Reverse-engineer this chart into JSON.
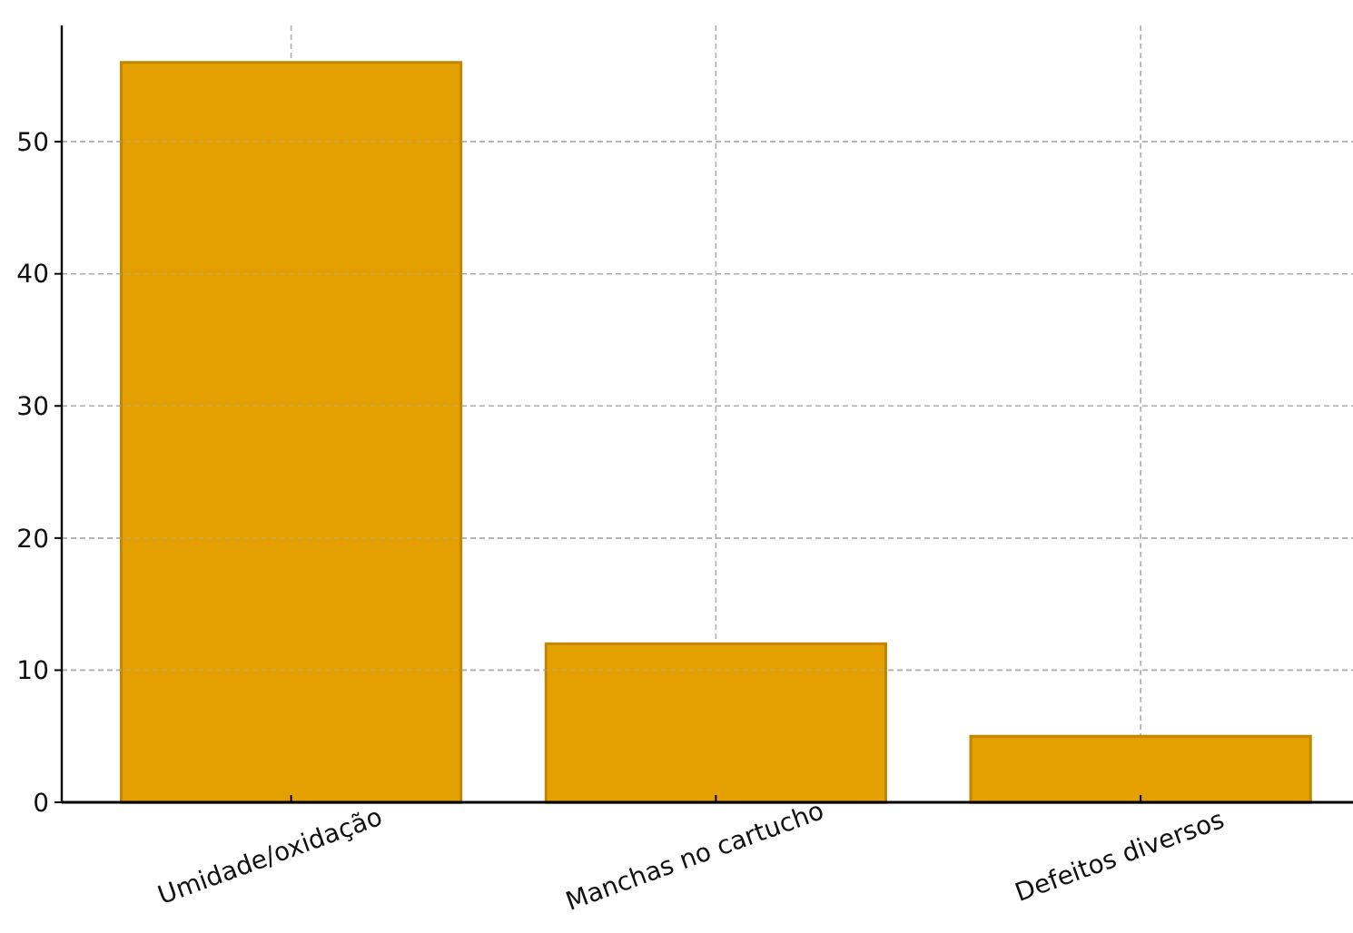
{
  "chart_data": {
    "type": "bar",
    "categories": [
      "Umidade/oxidação",
      "Manchas no cartucho",
      "Defeitos diversos"
    ],
    "values": [
      56,
      12,
      5
    ],
    "color": "#e4a000",
    "ylim": [
      0,
      58.8
    ],
    "yticks": [
      0,
      10,
      20,
      30,
      40,
      50
    ],
    "grid": true
  }
}
